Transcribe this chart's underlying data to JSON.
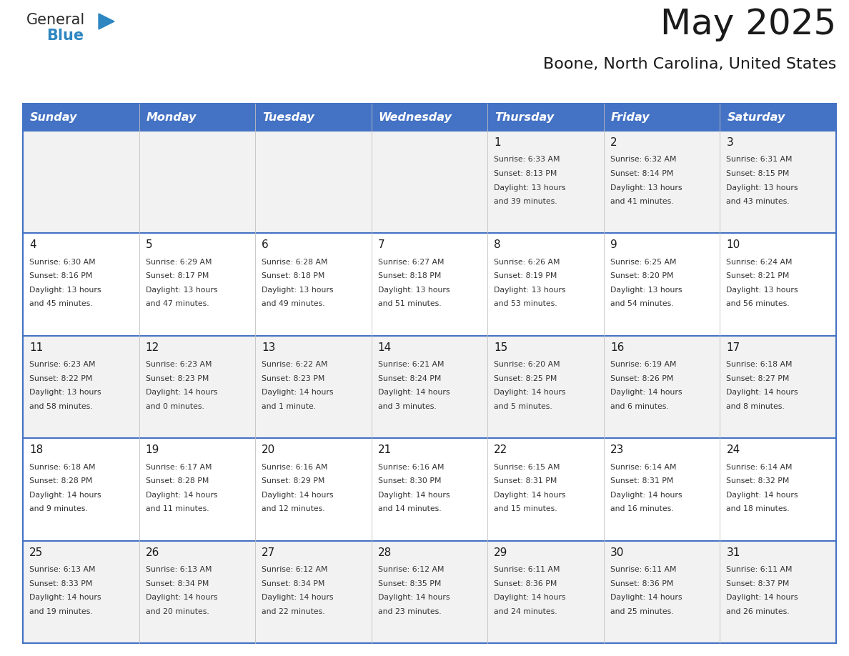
{
  "title": "May 2025",
  "subtitle": "Boone, North Carolina, United States",
  "header_bg": "#4472C4",
  "header_text": "#FFFFFF",
  "row_bg_odd": "#FFFFFF",
  "row_bg_even": "#F2F2F2",
  "grid_line_color": "#4472C4",
  "text_color": "#333333",
  "days_of_week": [
    "Sunday",
    "Monday",
    "Tuesday",
    "Wednesday",
    "Thursday",
    "Friday",
    "Saturday"
  ],
  "calendar": [
    [
      {
        "day": "",
        "sunrise": "",
        "sunset": "",
        "daylight": ""
      },
      {
        "day": "",
        "sunrise": "",
        "sunset": "",
        "daylight": ""
      },
      {
        "day": "",
        "sunrise": "",
        "sunset": "",
        "daylight": ""
      },
      {
        "day": "",
        "sunrise": "",
        "sunset": "",
        "daylight": ""
      },
      {
        "day": "1",
        "sunrise": "6:33 AM",
        "sunset": "8:13 PM",
        "daylight": "13 hours\nand 39 minutes."
      },
      {
        "day": "2",
        "sunrise": "6:32 AM",
        "sunset": "8:14 PM",
        "daylight": "13 hours\nand 41 minutes."
      },
      {
        "day": "3",
        "sunrise": "6:31 AM",
        "sunset": "8:15 PM",
        "daylight": "13 hours\nand 43 minutes."
      }
    ],
    [
      {
        "day": "4",
        "sunrise": "6:30 AM",
        "sunset": "8:16 PM",
        "daylight": "13 hours\nand 45 minutes."
      },
      {
        "day": "5",
        "sunrise": "6:29 AM",
        "sunset": "8:17 PM",
        "daylight": "13 hours\nand 47 minutes."
      },
      {
        "day": "6",
        "sunrise": "6:28 AM",
        "sunset": "8:18 PM",
        "daylight": "13 hours\nand 49 minutes."
      },
      {
        "day": "7",
        "sunrise": "6:27 AM",
        "sunset": "8:18 PM",
        "daylight": "13 hours\nand 51 minutes."
      },
      {
        "day": "8",
        "sunrise": "6:26 AM",
        "sunset": "8:19 PM",
        "daylight": "13 hours\nand 53 minutes."
      },
      {
        "day": "9",
        "sunrise": "6:25 AM",
        "sunset": "8:20 PM",
        "daylight": "13 hours\nand 54 minutes."
      },
      {
        "day": "10",
        "sunrise": "6:24 AM",
        "sunset": "8:21 PM",
        "daylight": "13 hours\nand 56 minutes."
      }
    ],
    [
      {
        "day": "11",
        "sunrise": "6:23 AM",
        "sunset": "8:22 PM",
        "daylight": "13 hours\nand 58 minutes."
      },
      {
        "day": "12",
        "sunrise": "6:23 AM",
        "sunset": "8:23 PM",
        "daylight": "14 hours\nand 0 minutes."
      },
      {
        "day": "13",
        "sunrise": "6:22 AM",
        "sunset": "8:23 PM",
        "daylight": "14 hours\nand 1 minute."
      },
      {
        "day": "14",
        "sunrise": "6:21 AM",
        "sunset": "8:24 PM",
        "daylight": "14 hours\nand 3 minutes."
      },
      {
        "day": "15",
        "sunrise": "6:20 AM",
        "sunset": "8:25 PM",
        "daylight": "14 hours\nand 5 minutes."
      },
      {
        "day": "16",
        "sunrise": "6:19 AM",
        "sunset": "8:26 PM",
        "daylight": "14 hours\nand 6 minutes."
      },
      {
        "day": "17",
        "sunrise": "6:18 AM",
        "sunset": "8:27 PM",
        "daylight": "14 hours\nand 8 minutes."
      }
    ],
    [
      {
        "day": "18",
        "sunrise": "6:18 AM",
        "sunset": "8:28 PM",
        "daylight": "14 hours\nand 9 minutes."
      },
      {
        "day": "19",
        "sunrise": "6:17 AM",
        "sunset": "8:28 PM",
        "daylight": "14 hours\nand 11 minutes."
      },
      {
        "day": "20",
        "sunrise": "6:16 AM",
        "sunset": "8:29 PM",
        "daylight": "14 hours\nand 12 minutes."
      },
      {
        "day": "21",
        "sunrise": "6:16 AM",
        "sunset": "8:30 PM",
        "daylight": "14 hours\nand 14 minutes."
      },
      {
        "day": "22",
        "sunrise": "6:15 AM",
        "sunset": "8:31 PM",
        "daylight": "14 hours\nand 15 minutes."
      },
      {
        "day": "23",
        "sunrise": "6:14 AM",
        "sunset": "8:31 PM",
        "daylight": "14 hours\nand 16 minutes."
      },
      {
        "day": "24",
        "sunrise": "6:14 AM",
        "sunset": "8:32 PM",
        "daylight": "14 hours\nand 18 minutes."
      }
    ],
    [
      {
        "day": "25",
        "sunrise": "6:13 AM",
        "sunset": "8:33 PM",
        "daylight": "14 hours\nand 19 minutes."
      },
      {
        "day": "26",
        "sunrise": "6:13 AM",
        "sunset": "8:34 PM",
        "daylight": "14 hours\nand 20 minutes."
      },
      {
        "day": "27",
        "sunrise": "6:12 AM",
        "sunset": "8:34 PM",
        "daylight": "14 hours\nand 22 minutes."
      },
      {
        "day": "28",
        "sunrise": "6:12 AM",
        "sunset": "8:35 PM",
        "daylight": "14 hours\nand 23 minutes."
      },
      {
        "day": "29",
        "sunrise": "6:11 AM",
        "sunset": "8:36 PM",
        "daylight": "14 hours\nand 24 minutes."
      },
      {
        "day": "30",
        "sunrise": "6:11 AM",
        "sunset": "8:36 PM",
        "daylight": "14 hours\nand 25 minutes."
      },
      {
        "day": "31",
        "sunrise": "6:11 AM",
        "sunset": "8:37 PM",
        "daylight": "14 hours\nand 26 minutes."
      }
    ]
  ]
}
